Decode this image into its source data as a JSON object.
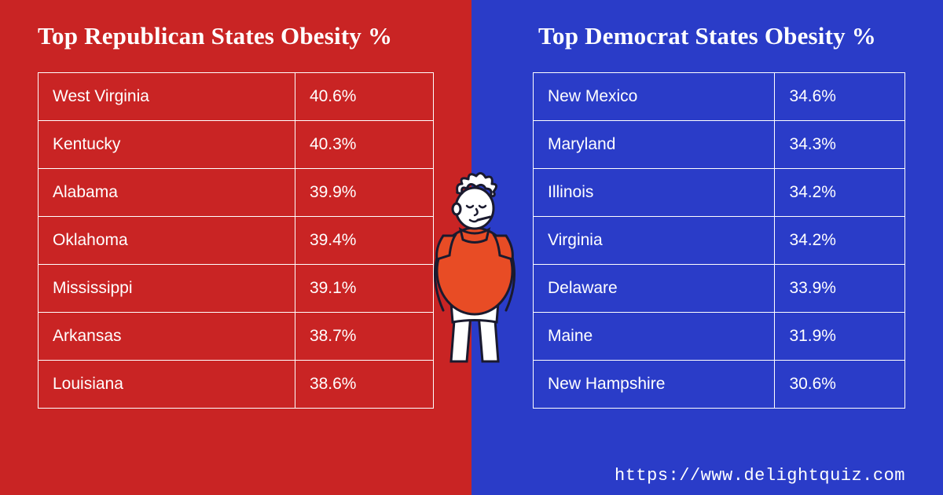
{
  "left": {
    "bg_color": "#c92424",
    "title": "Top Republican States Obesity %",
    "rows": [
      {
        "state": "West Virginia",
        "pct": "40.6%"
      },
      {
        "state": "Kentucky",
        "pct": "40.3%"
      },
      {
        "state": "Alabama",
        "pct": "39.9%"
      },
      {
        "state": "Oklahoma",
        "pct": "39.4%"
      },
      {
        "state": "Mississippi",
        "pct": "39.1%"
      },
      {
        "state": "Arkansas",
        "pct": "38.7%"
      },
      {
        "state": "Louisiana",
        "pct": "38.6%"
      }
    ]
  },
  "right": {
    "bg_color": "#2a3cc8",
    "title": "Top Democrat States Obesity %",
    "rows": [
      {
        "state": "New Mexico",
        "pct": "34.6%"
      },
      {
        "state": "Maryland",
        "pct": "34.3%"
      },
      {
        "state": "Illinois",
        "pct": "34.2%"
      },
      {
        "state": "Virginia",
        "pct": "34.2%"
      },
      {
        "state": "Delaware",
        "pct": "33.9%"
      },
      {
        "state": "Maine",
        "pct": "31.9%"
      },
      {
        "state": "New Hampshire",
        "pct": "30.6%"
      }
    ]
  },
  "illustration": {
    "shirt_color": "#e84c25",
    "skin_color": "#ffffff",
    "pants_color": "#ffffff",
    "stroke_color": "#1a1a2e",
    "stroke_width": 3
  },
  "footer_url": "https://www.delightquiz.com",
  "styling": {
    "title_fontsize": 31,
    "title_fontweight": 700,
    "cell_fontsize": 21,
    "border_color": "#ffffff",
    "text_color": "#ffffff",
    "font_family_title": "Georgia, serif",
    "font_family_table": "Arial, sans-serif",
    "font_family_url": "Courier New, monospace"
  }
}
